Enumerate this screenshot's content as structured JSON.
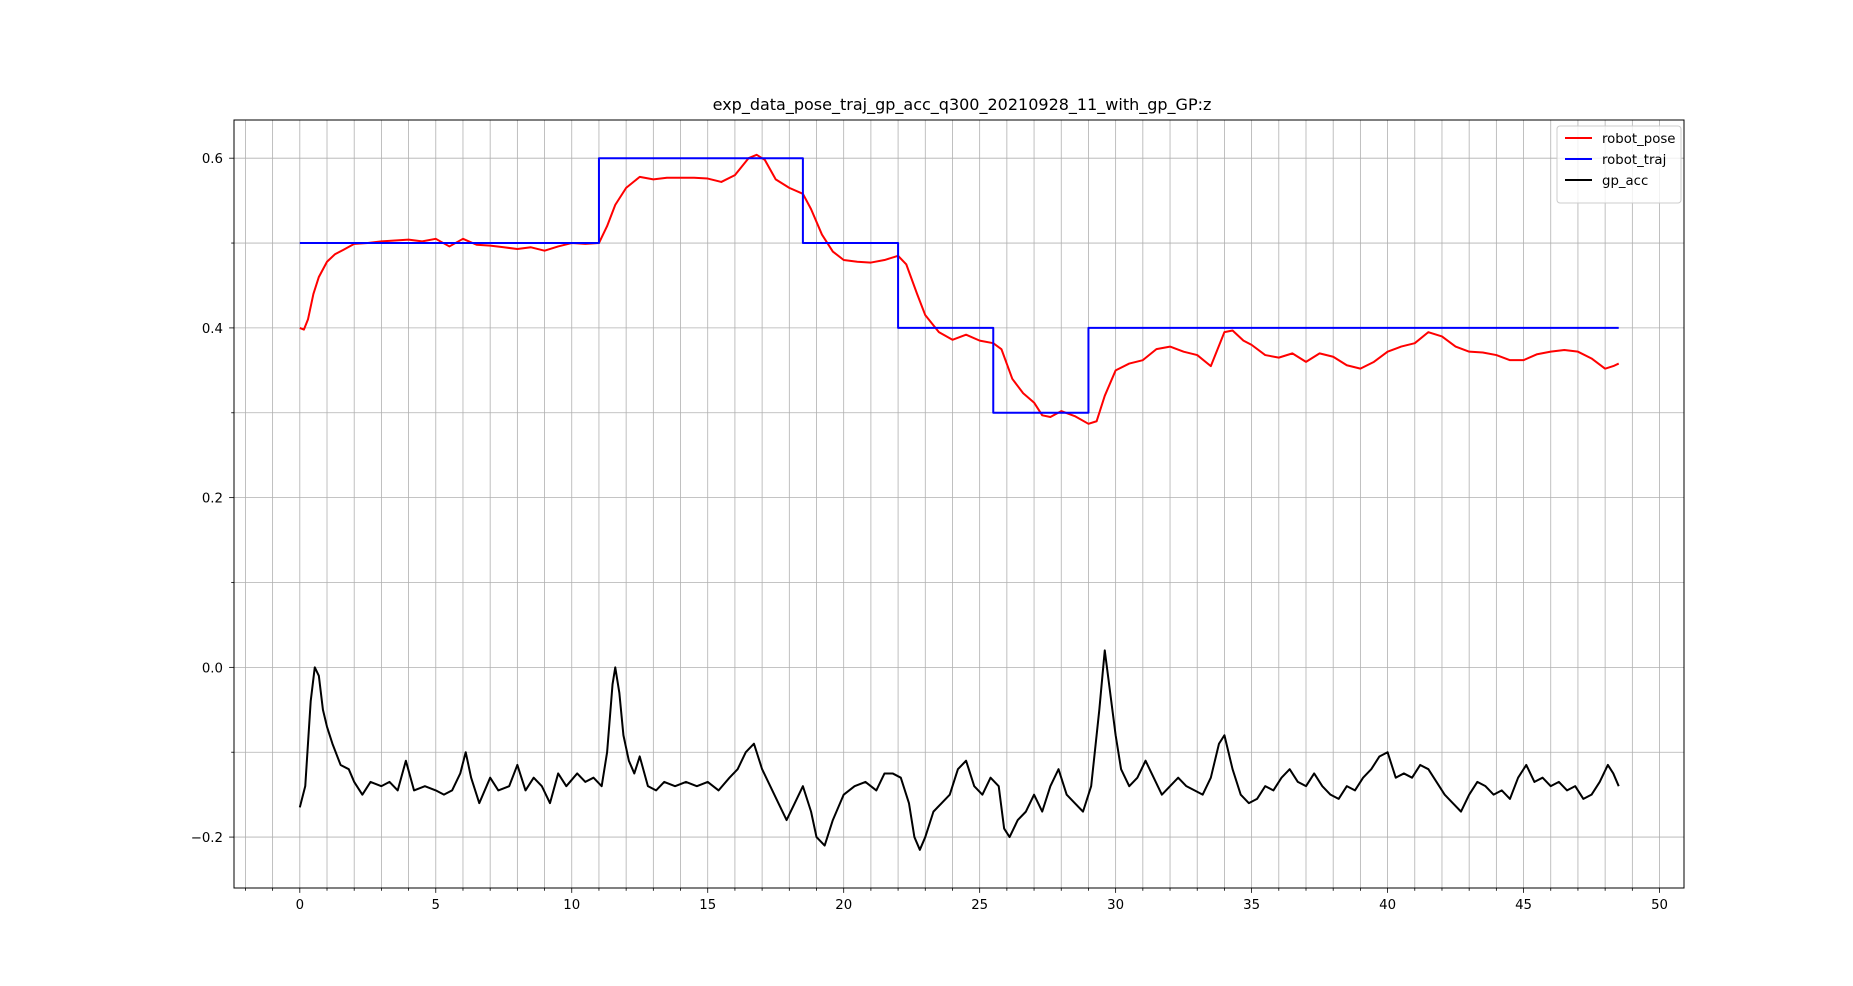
{
  "chart_data": {
    "type": "line",
    "title": "exp_data_pose_traj_gp_acc_q300_20210928_11_with_gp_GP:z",
    "xlabel": "",
    "ylabel": "",
    "xlim": [
      -2.42,
      50.9
    ],
    "ylim": [
      -0.26,
      0.645
    ],
    "x_ticks": [
      0,
      5,
      10,
      15,
      20,
      25,
      30,
      35,
      40,
      45,
      50
    ],
    "x_tick_labels": [
      "0",
      "5",
      "10",
      "15",
      "20",
      "25",
      "30",
      "35",
      "40",
      "45",
      "50"
    ],
    "x_minor_step": 1,
    "y_ticks": [
      -0.2,
      0.0,
      0.2,
      0.4,
      0.6
    ],
    "y_tick_labels": [
      "−0.2",
      "0.0",
      "0.2",
      "0.4",
      "0.6"
    ],
    "y_minor_step": 0.1,
    "grid": true,
    "legend": "top-right",
    "series": [
      {
        "name": "robot_pose",
        "color": "#ff0000",
        "points": [
          [
            0.0,
            0.4
          ],
          [
            0.15,
            0.398
          ],
          [
            0.3,
            0.41
          ],
          [
            0.5,
            0.44
          ],
          [
            0.7,
            0.46
          ],
          [
            1.0,
            0.478
          ],
          [
            1.3,
            0.487
          ],
          [
            1.6,
            0.492
          ],
          [
            2.0,
            0.499
          ],
          [
            2.5,
            0.5
          ],
          [
            3.0,
            0.502
          ],
          [
            3.5,
            0.503
          ],
          [
            4.0,
            0.504
          ],
          [
            4.5,
            0.502
          ],
          [
            5.0,
            0.505
          ],
          [
            5.5,
            0.496
          ],
          [
            6.0,
            0.505
          ],
          [
            6.5,
            0.498
          ],
          [
            7.0,
            0.497
          ],
          [
            7.5,
            0.495
          ],
          [
            8.0,
            0.493
          ],
          [
            8.5,
            0.495
          ],
          [
            9.0,
            0.491
          ],
          [
            9.5,
            0.496
          ],
          [
            10.0,
            0.5
          ],
          [
            10.5,
            0.499
          ],
          [
            11.0,
            0.5
          ],
          [
            11.3,
            0.52
          ],
          [
            11.6,
            0.545
          ],
          [
            12.0,
            0.565
          ],
          [
            12.5,
            0.578
          ],
          [
            13.0,
            0.575
          ],
          [
            13.5,
            0.577
          ],
          [
            14.0,
            0.577
          ],
          [
            14.5,
            0.577
          ],
          [
            15.0,
            0.576
          ],
          [
            15.5,
            0.572
          ],
          [
            16.0,
            0.58
          ],
          [
            16.5,
            0.6
          ],
          [
            16.8,
            0.604
          ],
          [
            17.1,
            0.598
          ],
          [
            17.5,
            0.575
          ],
          [
            18.0,
            0.565
          ],
          [
            18.5,
            0.558
          ],
          [
            18.8,
            0.54
          ],
          [
            19.2,
            0.51
          ],
          [
            19.6,
            0.49
          ],
          [
            20.0,
            0.48
          ],
          [
            20.5,
            0.478
          ],
          [
            21.0,
            0.477
          ],
          [
            21.5,
            0.48
          ],
          [
            22.0,
            0.485
          ],
          [
            22.3,
            0.475
          ],
          [
            22.7,
            0.44
          ],
          [
            23.0,
            0.415
          ],
          [
            23.5,
            0.395
          ],
          [
            24.0,
            0.386
          ],
          [
            24.5,
            0.392
          ],
          [
            25.0,
            0.385
          ],
          [
            25.5,
            0.382
          ],
          [
            25.8,
            0.375
          ],
          [
            26.2,
            0.34
          ],
          [
            26.6,
            0.323
          ],
          [
            27.0,
            0.312
          ],
          [
            27.3,
            0.297
          ],
          [
            27.6,
            0.295
          ],
          [
            28.0,
            0.302
          ],
          [
            28.5,
            0.296
          ],
          [
            29.0,
            0.287
          ],
          [
            29.3,
            0.29
          ],
          [
            29.6,
            0.32
          ],
          [
            30.0,
            0.35
          ],
          [
            30.5,
            0.358
          ],
          [
            31.0,
            0.362
          ],
          [
            31.5,
            0.375
          ],
          [
            32.0,
            0.378
          ],
          [
            32.5,
            0.372
          ],
          [
            33.0,
            0.368
          ],
          [
            33.5,
            0.355
          ],
          [
            34.0,
            0.395
          ],
          [
            34.3,
            0.397
          ],
          [
            34.7,
            0.385
          ],
          [
            35.0,
            0.38
          ],
          [
            35.5,
            0.368
          ],
          [
            36.0,
            0.365
          ],
          [
            36.5,
            0.37
          ],
          [
            37.0,
            0.36
          ],
          [
            37.5,
            0.37
          ],
          [
            38.0,
            0.366
          ],
          [
            38.5,
            0.356
          ],
          [
            39.0,
            0.352
          ],
          [
            39.5,
            0.36
          ],
          [
            40.0,
            0.372
          ],
          [
            40.5,
            0.378
          ],
          [
            41.0,
            0.382
          ],
          [
            41.5,
            0.395
          ],
          [
            42.0,
            0.39
          ],
          [
            42.5,
            0.378
          ],
          [
            43.0,
            0.372
          ],
          [
            43.5,
            0.371
          ],
          [
            44.0,
            0.368
          ],
          [
            44.5,
            0.362
          ],
          [
            45.0,
            0.362
          ],
          [
            45.5,
            0.369
          ],
          [
            46.0,
            0.372
          ],
          [
            46.5,
            0.374
          ],
          [
            47.0,
            0.372
          ],
          [
            47.5,
            0.364
          ],
          [
            48.0,
            0.352
          ],
          [
            48.3,
            0.355
          ],
          [
            48.5,
            0.358
          ]
        ]
      },
      {
        "name": "robot_traj",
        "color": "#0000ff",
        "points": [
          [
            0.0,
            0.5
          ],
          [
            11.0,
            0.5
          ],
          [
            11.0,
            0.6
          ],
          [
            18.5,
            0.6
          ],
          [
            18.5,
            0.5
          ],
          [
            22.0,
            0.5
          ],
          [
            22.0,
            0.4
          ],
          [
            25.5,
            0.4
          ],
          [
            25.5,
            0.3
          ],
          [
            29.0,
            0.3
          ],
          [
            29.0,
            0.4
          ],
          [
            48.5,
            0.4
          ]
        ]
      },
      {
        "name": "gp_acc",
        "color": "#000000",
        "points": [
          [
            0.0,
            -0.165
          ],
          [
            0.2,
            -0.14
          ],
          [
            0.4,
            -0.04
          ],
          [
            0.55,
            0.0
          ],
          [
            0.7,
            -0.01
          ],
          [
            0.85,
            -0.05
          ],
          [
            1.0,
            -0.07
          ],
          [
            1.2,
            -0.09
          ],
          [
            1.5,
            -0.115
          ],
          [
            1.8,
            -0.12
          ],
          [
            2.0,
            -0.135
          ],
          [
            2.3,
            -0.15
          ],
          [
            2.6,
            -0.135
          ],
          [
            3.0,
            -0.14
          ],
          [
            3.3,
            -0.135
          ],
          [
            3.6,
            -0.145
          ],
          [
            3.9,
            -0.11
          ],
          [
            4.2,
            -0.145
          ],
          [
            4.6,
            -0.14
          ],
          [
            5.0,
            -0.145
          ],
          [
            5.3,
            -0.15
          ],
          [
            5.6,
            -0.145
          ],
          [
            5.9,
            -0.125
          ],
          [
            6.1,
            -0.1
          ],
          [
            6.3,
            -0.13
          ],
          [
            6.6,
            -0.16
          ],
          [
            7.0,
            -0.13
          ],
          [
            7.3,
            -0.145
          ],
          [
            7.7,
            -0.14
          ],
          [
            8.0,
            -0.115
          ],
          [
            8.3,
            -0.145
          ],
          [
            8.6,
            -0.13
          ],
          [
            8.9,
            -0.14
          ],
          [
            9.2,
            -0.16
          ],
          [
            9.5,
            -0.125
          ],
          [
            9.8,
            -0.14
          ],
          [
            10.2,
            -0.125
          ],
          [
            10.5,
            -0.135
          ],
          [
            10.8,
            -0.13
          ],
          [
            11.1,
            -0.14
          ],
          [
            11.3,
            -0.1
          ],
          [
            11.5,
            -0.02
          ],
          [
            11.6,
            0.0
          ],
          [
            11.75,
            -0.03
          ],
          [
            11.9,
            -0.08
          ],
          [
            12.1,
            -0.11
          ],
          [
            12.3,
            -0.125
          ],
          [
            12.5,
            -0.105
          ],
          [
            12.8,
            -0.14
          ],
          [
            13.1,
            -0.145
          ],
          [
            13.4,
            -0.135
          ],
          [
            13.8,
            -0.14
          ],
          [
            14.2,
            -0.135
          ],
          [
            14.6,
            -0.14
          ],
          [
            15.0,
            -0.135
          ],
          [
            15.4,
            -0.145
          ],
          [
            15.8,
            -0.13
          ],
          [
            16.1,
            -0.12
          ],
          [
            16.4,
            -0.1
          ],
          [
            16.7,
            -0.09
          ],
          [
            17.0,
            -0.12
          ],
          [
            17.3,
            -0.14
          ],
          [
            17.6,
            -0.16
          ],
          [
            17.9,
            -0.18
          ],
          [
            18.2,
            -0.16
          ],
          [
            18.5,
            -0.14
          ],
          [
            18.8,
            -0.17
          ],
          [
            19.0,
            -0.2
          ],
          [
            19.3,
            -0.21
          ],
          [
            19.6,
            -0.18
          ],
          [
            20.0,
            -0.15
          ],
          [
            20.4,
            -0.14
          ],
          [
            20.8,
            -0.135
          ],
          [
            21.2,
            -0.145
          ],
          [
            21.5,
            -0.125
          ],
          [
            21.8,
            -0.125
          ],
          [
            22.1,
            -0.13
          ],
          [
            22.4,
            -0.16
          ],
          [
            22.6,
            -0.2
          ],
          [
            22.8,
            -0.215
          ],
          [
            23.0,
            -0.2
          ],
          [
            23.3,
            -0.17
          ],
          [
            23.6,
            -0.16
          ],
          [
            23.9,
            -0.15
          ],
          [
            24.2,
            -0.12
          ],
          [
            24.5,
            -0.11
          ],
          [
            24.8,
            -0.14
          ],
          [
            25.1,
            -0.15
          ],
          [
            25.4,
            -0.13
          ],
          [
            25.7,
            -0.14
          ],
          [
            25.9,
            -0.19
          ],
          [
            26.1,
            -0.2
          ],
          [
            26.4,
            -0.18
          ],
          [
            26.7,
            -0.17
          ],
          [
            27.0,
            -0.15
          ],
          [
            27.3,
            -0.17
          ],
          [
            27.6,
            -0.14
          ],
          [
            27.9,
            -0.12
          ],
          [
            28.2,
            -0.15
          ],
          [
            28.5,
            -0.16
          ],
          [
            28.8,
            -0.17
          ],
          [
            29.1,
            -0.14
          ],
          [
            29.4,
            -0.05
          ],
          [
            29.6,
            0.02
          ],
          [
            29.8,
            -0.03
          ],
          [
            30.0,
            -0.08
          ],
          [
            30.2,
            -0.12
          ],
          [
            30.5,
            -0.14
          ],
          [
            30.8,
            -0.13
          ],
          [
            31.1,
            -0.11
          ],
          [
            31.4,
            -0.13
          ],
          [
            31.7,
            -0.15
          ],
          [
            32.0,
            -0.14
          ],
          [
            32.3,
            -0.13
          ],
          [
            32.6,
            -0.14
          ],
          [
            32.9,
            -0.145
          ],
          [
            33.2,
            -0.15
          ],
          [
            33.5,
            -0.13
          ],
          [
            33.8,
            -0.09
          ],
          [
            34.0,
            -0.08
          ],
          [
            34.3,
            -0.12
          ],
          [
            34.6,
            -0.15
          ],
          [
            34.9,
            -0.16
          ],
          [
            35.2,
            -0.155
          ],
          [
            35.5,
            -0.14
          ],
          [
            35.8,
            -0.145
          ],
          [
            36.1,
            -0.13
          ],
          [
            36.4,
            -0.12
          ],
          [
            36.7,
            -0.135
          ],
          [
            37.0,
            -0.14
          ],
          [
            37.3,
            -0.125
          ],
          [
            37.6,
            -0.14
          ],
          [
            37.9,
            -0.15
          ],
          [
            38.2,
            -0.155
          ],
          [
            38.5,
            -0.14
          ],
          [
            38.8,
            -0.145
          ],
          [
            39.1,
            -0.13
          ],
          [
            39.4,
            -0.12
          ],
          [
            39.7,
            -0.105
          ],
          [
            40.0,
            -0.1
          ],
          [
            40.3,
            -0.13
          ],
          [
            40.6,
            -0.125
          ],
          [
            40.9,
            -0.13
          ],
          [
            41.2,
            -0.115
          ],
          [
            41.5,
            -0.12
          ],
          [
            41.8,
            -0.135
          ],
          [
            42.1,
            -0.15
          ],
          [
            42.4,
            -0.16
          ],
          [
            42.7,
            -0.17
          ],
          [
            43.0,
            -0.15
          ],
          [
            43.3,
            -0.135
          ],
          [
            43.6,
            -0.14
          ],
          [
            43.9,
            -0.15
          ],
          [
            44.2,
            -0.145
          ],
          [
            44.5,
            -0.155
          ],
          [
            44.8,
            -0.13
          ],
          [
            45.1,
            -0.115
          ],
          [
            45.4,
            -0.135
          ],
          [
            45.7,
            -0.13
          ],
          [
            46.0,
            -0.14
          ],
          [
            46.3,
            -0.135
          ],
          [
            46.6,
            -0.145
          ],
          [
            46.9,
            -0.14
          ],
          [
            47.2,
            -0.155
          ],
          [
            47.5,
            -0.15
          ],
          [
            47.8,
            -0.135
          ],
          [
            48.1,
            -0.115
          ],
          [
            48.3,
            -0.125
          ],
          [
            48.5,
            -0.14
          ]
        ]
      }
    ]
  }
}
